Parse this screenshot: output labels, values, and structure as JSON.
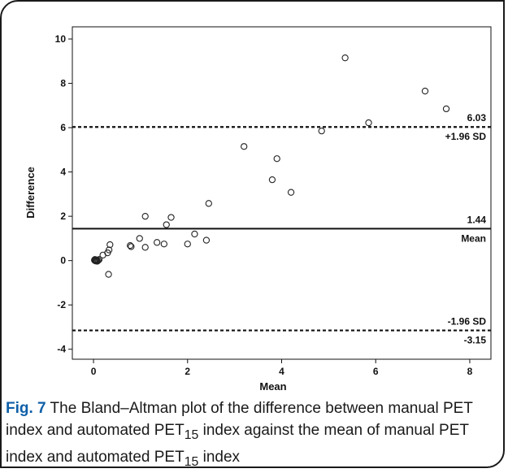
{
  "chart_data": {
    "type": "scatter",
    "title": "",
    "xlabel": "Mean",
    "ylabel": "Difference",
    "xlim": [
      -0.45,
      8.45
    ],
    "ylim": [
      -4.45,
      10.55
    ],
    "x_ticks": [
      0,
      2,
      4,
      6,
      8
    ],
    "y_ticks": [
      -4,
      -2,
      0,
      2,
      4,
      6,
      8,
      10
    ],
    "grid": false,
    "points": [
      {
        "x": 0.02,
        "y": 0.02
      },
      {
        "x": 0.03,
        "y": 0.0
      },
      {
        "x": 0.04,
        "y": 0.04
      },
      {
        "x": 0.05,
        "y": -0.02
      },
      {
        "x": 0.06,
        "y": 0.03
      },
      {
        "x": 0.07,
        "y": 0.01
      },
      {
        "x": 0.03,
        "y": 0.05
      },
      {
        "x": 0.08,
        "y": -0.03
      },
      {
        "x": 0.1,
        "y": 0.01
      },
      {
        "x": 0.12,
        "y": 0.05
      },
      {
        "x": 0.2,
        "y": 0.25
      },
      {
        "x": 0.3,
        "y": 0.35
      },
      {
        "x": 0.33,
        "y": 0.48
      },
      {
        "x": 0.35,
        "y": 0.72
      },
      {
        "x": 0.32,
        "y": -0.62
      },
      {
        "x": 0.78,
        "y": 0.68
      },
      {
        "x": 0.8,
        "y": 0.63
      },
      {
        "x": 0.98,
        "y": 1.0
      },
      {
        "x": 1.1,
        "y": 2.0
      },
      {
        "x": 1.1,
        "y": 0.6
      },
      {
        "x": 1.35,
        "y": 0.82
      },
      {
        "x": 1.55,
        "y": 1.62
      },
      {
        "x": 1.5,
        "y": 0.75
      },
      {
        "x": 1.65,
        "y": 1.95
      },
      {
        "x": 2.0,
        "y": 0.75
      },
      {
        "x": 2.15,
        "y": 1.2
      },
      {
        "x": 2.4,
        "y": 0.92
      },
      {
        "x": 2.45,
        "y": 2.58
      },
      {
        "x": 3.2,
        "y": 5.15
      },
      {
        "x": 3.8,
        "y": 3.65
      },
      {
        "x": 3.9,
        "y": 4.6
      },
      {
        "x": 4.2,
        "y": 3.08
      },
      {
        "x": 4.85,
        "y": 5.85
      },
      {
        "x": 5.35,
        "y": 9.15
      },
      {
        "x": 5.85,
        "y": 6.22
      },
      {
        "x": 7.05,
        "y": 7.65
      },
      {
        "x": 7.5,
        "y": 6.85
      }
    ],
    "reference_lines": [
      {
        "name": "upper",
        "y": 6.03,
        "style": "dashed",
        "value_label": "6.03",
        "line_label": "+1.96 SD"
      },
      {
        "name": "mean",
        "y": 1.44,
        "style": "solid",
        "value_label": "1.44",
        "line_label": "Mean"
      },
      {
        "name": "lower",
        "y": -3.15,
        "style": "dashed",
        "value_label": "-3.15",
        "line_label": "-1.96 SD"
      }
    ]
  },
  "caption": {
    "label": "Fig. 7",
    "text_1": " The Bland–Altman plot of the difference between manual PET index and automated PET",
    "sub_1": "15",
    "text_2": " index against the mean of manual PET index and automated PET",
    "sub_2": "15",
    "text_3": " index"
  },
  "colors": {
    "caption_label": "#0f5fa8",
    "marker_stroke": "#222222",
    "line": "#111111"
  }
}
